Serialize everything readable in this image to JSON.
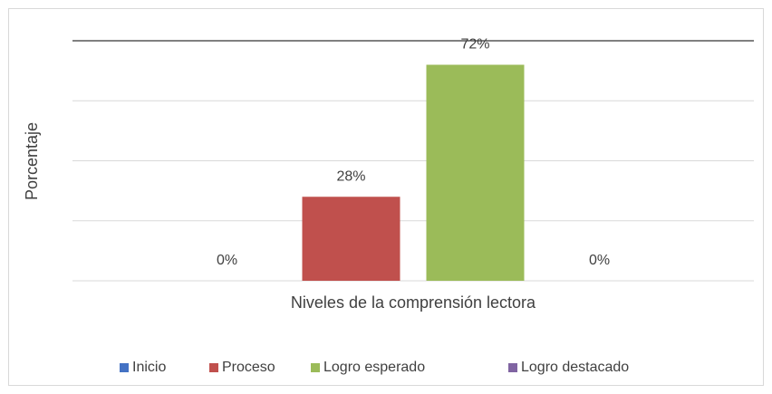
{
  "chart_data": {
    "type": "bar",
    "categories": [
      null
    ],
    "series": [
      {
        "name": "Inicio",
        "color": "#4472c4",
        "values": [
          0
        ],
        "value_labels": [
          "0%"
        ]
      },
      {
        "name": "Proceso",
        "color": "#c0504d",
        "values": [
          28
        ],
        "value_labels": [
          "28%"
        ]
      },
      {
        "name": "Logro esperado",
        "color": "#9bbb59",
        "values": [
          72
        ],
        "value_labels": [
          "72%"
        ]
      },
      {
        "name": "Logro destacado",
        "color": "#8064a2",
        "values": [
          0
        ],
        "value_labels": [
          "0%"
        ]
      }
    ],
    "x_label": "Niveles de la comprensión lectora",
    "y_label": "Porcentaje",
    "ylim": [
      0,
      80
    ],
    "yticks": [
      0,
      20,
      40,
      60,
      80
    ],
    "grid": true,
    "legend": "bottom"
  }
}
